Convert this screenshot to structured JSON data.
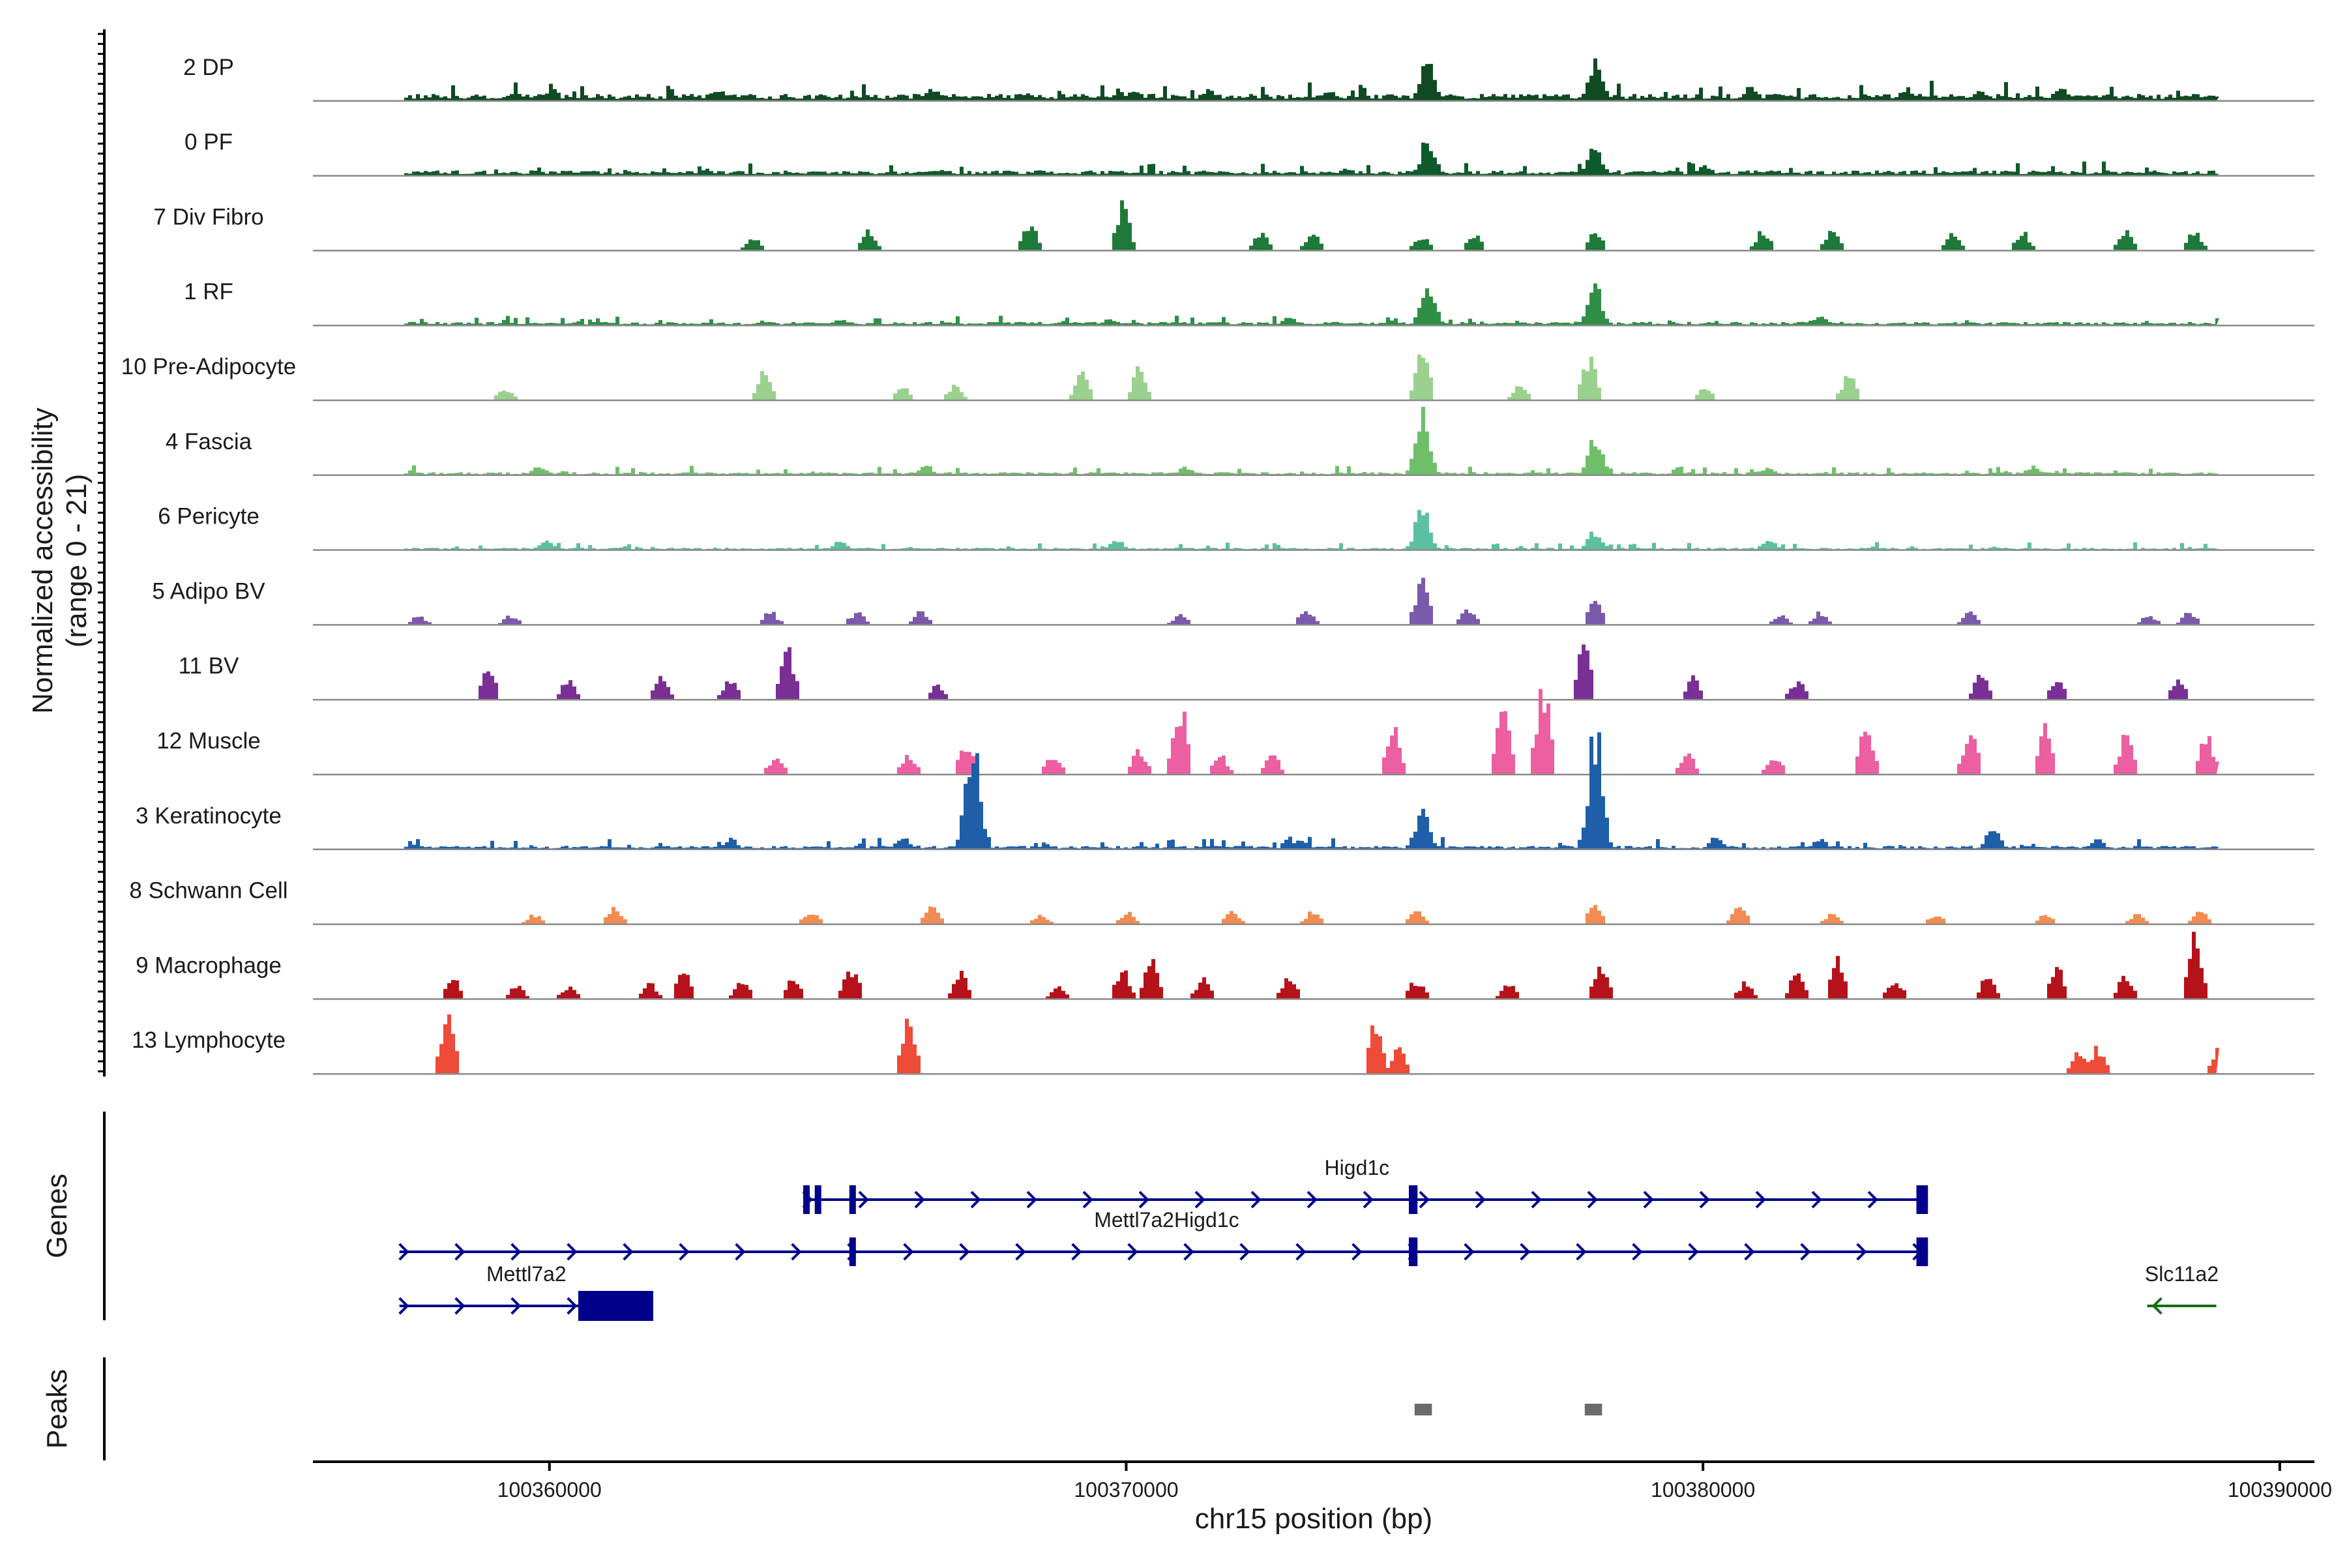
{
  "chart_data": {
    "type": "area",
    "title": "",
    "ylabel_lines": [
      "Normalized accessibility",
      "(range 0 - 21)"
    ],
    "ylim": [
      0,
      21
    ],
    "xlabel": "chr15 position (bp)",
    "xlim": [
      100355900,
      100390600
    ],
    "xticks": [
      {
        "value": 100360000,
        "label": "100360000"
      },
      {
        "value": 100370000,
        "label": "100370000"
      },
      {
        "value": 100380000,
        "label": "100380000"
      },
      {
        "value": 100390000,
        "label": "100390000"
      }
    ],
    "data_end": 100388900,
    "tracks": [
      {
        "name": "2 DP",
        "color": "#0f4a22",
        "baseline": 1.2,
        "noise": 1.6,
        "peaks": [
          [
            100360000,
            2
          ],
          [
            100362900,
            2
          ],
          [
            100366600,
            2
          ],
          [
            100370100,
            2
          ],
          [
            100371400,
            2
          ],
          [
            100373500,
            1.8
          ],
          [
            100375200,
            7
          ],
          [
            100378100,
            6
          ],
          [
            100380800,
            2.3
          ],
          [
            100383500,
            2
          ],
          [
            100386200,
            2
          ]
        ]
      },
      {
        "name": "0 PF",
        "color": "#0e5a2a",
        "baseline": 0.9,
        "noise": 1.1,
        "peaks": [
          [
            100362700,
            1
          ],
          [
            100366800,
            1
          ],
          [
            100369800,
            1
          ],
          [
            100373800,
            1.3
          ],
          [
            100375200,
            6
          ],
          [
            100378100,
            4.5
          ],
          [
            100380000,
            1.8
          ]
        ]
      },
      {
        "name": "7 Div Fibro",
        "color": "#1f7a3a",
        "baseline": 0,
        "noise": 0,
        "peaks": [
          [
            100363500,
            2
          ],
          [
            100365500,
            3.5
          ],
          [
            100368300,
            4
          ],
          [
            100369900,
            7
          ],
          [
            100372300,
            3
          ],
          [
            100373200,
            3
          ],
          [
            100375100,
            2.5
          ],
          [
            100376000,
            2.5
          ],
          [
            100378100,
            3.5
          ],
          [
            100381000,
            3
          ],
          [
            100382200,
            3
          ],
          [
            100384300,
            2.5
          ],
          [
            100385500,
            3
          ],
          [
            100387300,
            3.5
          ],
          [
            100388500,
            3
          ]
        ]
      },
      {
        "name": "1 RF",
        "color": "#2f8f46",
        "baseline": 0.6,
        "noise": 0.8,
        "peaks": [
          [
            100365000,
            1
          ],
          [
            100369700,
            1
          ],
          [
            100372800,
            1.2
          ],
          [
            100375200,
            7
          ],
          [
            100378100,
            6
          ],
          [
            100382000,
            1.5
          ]
        ]
      },
      {
        "name": "10 Pre-Adipocyte",
        "color": "#9bd18f",
        "baseline": 0,
        "noise": 0,
        "peaks": [
          [
            100359200,
            2
          ],
          [
            100363700,
            5
          ],
          [
            100366100,
            2.2
          ],
          [
            100367000,
            2.2
          ],
          [
            100369200,
            4
          ],
          [
            100370200,
            5
          ],
          [
            100375100,
            8
          ],
          [
            100376800,
            2.5
          ],
          [
            100378000,
            6.5
          ],
          [
            100380000,
            2.2
          ],
          [
            100382500,
            4
          ]
        ]
      },
      {
        "name": "4 Fascia",
        "color": "#6fbf6a",
        "baseline": 0.5,
        "noise": 0.9,
        "peaks": [
          [
            100359800,
            1.5
          ],
          [
            100366500,
            1.5
          ],
          [
            100371000,
            1.2
          ],
          [
            100375100,
            10
          ],
          [
            100378100,
            6.5
          ],
          [
            100381100,
            1.2
          ],
          [
            100385700,
            1.4
          ]
        ]
      },
      {
        "name": "6 Pericyte",
        "color": "#5dbfa2",
        "baseline": 0.4,
        "noise": 0.7,
        "peaks": [
          [
            100359900,
            1.5
          ],
          [
            100365000,
            1.5
          ],
          [
            100369800,
            1.5
          ],
          [
            100375100,
            6.5
          ],
          [
            100378100,
            3
          ],
          [
            100381100,
            1.6
          ]
        ]
      },
      {
        "name": "5 Adipo BV",
        "color": "#7b5aab",
        "baseline": 0,
        "noise": 0,
        "peaks": [
          [
            100357700,
            1.5
          ],
          [
            100359300,
            1.5
          ],
          [
            100363800,
            2
          ],
          [
            100365300,
            2
          ],
          [
            100366400,
            2
          ],
          [
            100370900,
            1.5
          ],
          [
            100373100,
            2.5
          ],
          [
            100375100,
            7
          ],
          [
            100375900,
            2.5
          ],
          [
            100378100,
            3.5
          ],
          [
            100381300,
            1.5
          ],
          [
            100382000,
            2
          ],
          [
            100384600,
            2
          ],
          [
            100387700,
            1.5
          ],
          [
            100388400,
            2
          ]
        ]
      },
      {
        "name": "11 BV",
        "color": "#7a2f95",
        "baseline": 0,
        "noise": 0,
        "peaks": [
          [
            100358900,
            5
          ],
          [
            100360300,
            3
          ],
          [
            100361900,
            3.5
          ],
          [
            100363100,
            3
          ],
          [
            100364100,
            8
          ],
          [
            100366700,
            2.5
          ],
          [
            100377900,
            8
          ],
          [
            100379800,
            3.5
          ],
          [
            100381600,
            3
          ],
          [
            100384800,
            4
          ],
          [
            100386100,
            3
          ],
          [
            100388200,
            3
          ]
        ]
      },
      {
        "name": "12 Muscle",
        "color": "#ec5fa0",
        "baseline": 0,
        "noise": 0,
        "peaks": [
          [
            100363900,
            3
          ],
          [
            100366200,
            3
          ],
          [
            100367200,
            5
          ],
          [
            100368700,
            3
          ],
          [
            100370200,
            4
          ],
          [
            100370900,
            11
          ],
          [
            100371600,
            3
          ],
          [
            100372500,
            3
          ],
          [
            100374600,
            7
          ],
          [
            100376500,
            10
          ],
          [
            100377200,
            13
          ],
          [
            100379700,
            3
          ],
          [
            100381200,
            3
          ],
          [
            100382800,
            8
          ],
          [
            100384600,
            7
          ],
          [
            100385900,
            7
          ],
          [
            100387300,
            6
          ],
          [
            100388700,
            6
          ]
        ]
      },
      {
        "name": "3 Keratinocyte",
        "color": "#1f5ea8",
        "baseline": 0.6,
        "noise": 1.1,
        "peaks": [
          [
            100363100,
            1.6
          ],
          [
            100366100,
            2
          ],
          [
            100367300,
            17
          ],
          [
            100373000,
            1.5
          ],
          [
            100375100,
            6
          ],
          [
            100378100,
            19
          ],
          [
            100380200,
            2
          ],
          [
            100382000,
            1.6
          ],
          [
            100385000,
            3.5
          ],
          [
            100386800,
            1.5
          ]
        ]
      },
      {
        "name": "8 Schwann Cell",
        "color": "#f28c52",
        "baseline": 0,
        "noise": 0,
        "peaks": [
          [
            100359700,
            1.5
          ],
          [
            100361100,
            2.5
          ],
          [
            100364500,
            2
          ],
          [
            100366600,
            2.5
          ],
          [
            100368500,
            1.5
          ],
          [
            100370000,
            1.8
          ],
          [
            100371800,
            2
          ],
          [
            100373200,
            2
          ],
          [
            100375000,
            2.5
          ],
          [
            100378100,
            3
          ],
          [
            100380600,
            2.5
          ],
          [
            100382200,
            1.5
          ],
          [
            100384000,
            1.5
          ],
          [
            100385900,
            1.5
          ],
          [
            100387500,
            1.5
          ],
          [
            100388600,
            2
          ]
        ]
      },
      {
        "name": "9 Macrophage",
        "color": "#b5121b",
        "baseline": 0,
        "noise": 0,
        "peaks": [
          [
            100358300,
            3
          ],
          [
            100359400,
            2
          ],
          [
            100360300,
            2
          ],
          [
            100361700,
            2.5
          ],
          [
            100362300,
            4.5
          ],
          [
            100363300,
            3
          ],
          [
            100364200,
            3.5
          ],
          [
            100365200,
            5
          ],
          [
            100367100,
            4
          ],
          [
            100368800,
            2
          ],
          [
            100369900,
            4.5
          ],
          [
            100370400,
            6
          ],
          [
            100371300,
            3
          ],
          [
            100372800,
            3.5
          ],
          [
            100375000,
            3
          ],
          [
            100376600,
            2.5
          ],
          [
            100378200,
            5
          ],
          [
            100380700,
            2.5
          ],
          [
            100381600,
            4
          ],
          [
            100382300,
            6
          ],
          [
            100383300,
            3
          ],
          [
            100384900,
            3.5
          ],
          [
            100386100,
            5
          ],
          [
            100387300,
            4
          ],
          [
            100388500,
            10
          ]
        ]
      },
      {
        "name": "13 Lymphocyte",
        "color": "#ee4b38",
        "baseline": 0,
        "noise": 0,
        "peaks": [
          [
            100358200,
            9
          ],
          [
            100366200,
            8
          ],
          [
            100374300,
            8
          ],
          [
            100374700,
            4
          ],
          [
            100386500,
            4
          ],
          [
            100386800,
            4
          ],
          [
            100388900,
            4
          ]
        ]
      }
    ],
    "gene_rows": [
      {
        "gene": "Higd1c",
        "label": "Higd1c",
        "strand": "+",
        "color": "#00008b",
        "start": 100364400,
        "end": 100383900,
        "label_pos": 100374000,
        "exons": [
          [
            100364400,
            100364500
          ],
          [
            100364600,
            100364700
          ],
          [
            100365200,
            100365300
          ],
          [
            100374900,
            100375050
          ],
          [
            100383700,
            100383900
          ]
        ]
      },
      {
        "gene": "Mettl7a2Higd1c",
        "label": "Mettl7a2Higd1c",
        "strand": "+",
        "color": "#00008b",
        "start": 100357400,
        "end": 100383900,
        "label_pos": 100370700,
        "exons": [
          [
            100365200,
            100365300
          ],
          [
            100374900,
            100375050
          ],
          [
            100383700,
            100383900
          ]
        ]
      },
      {
        "gene": "Mettl7a2",
        "label": "Mettl7a2",
        "strand": "+",
        "color": "#00008b",
        "start": 100357400,
        "end": 100361800,
        "label_pos": 100359600,
        "exons": [
          [
            100360500,
            100361800
          ]
        ]
      },
      {
        "gene": "Slc11a2",
        "label": "Slc11a2",
        "strand": "-",
        "color": "#1a6b1a",
        "start": 100387700,
        "end": 100388900,
        "label_pos": 100388300,
        "exons": []
      }
    ],
    "track_labels": {
      "genes": "Genes",
      "peaks": "Peaks"
    },
    "peak_regions": [
      [
        100375000,
        100375300
      ],
      [
        100377950,
        100378250
      ]
    ],
    "peak_color": "#6b6b6b"
  }
}
